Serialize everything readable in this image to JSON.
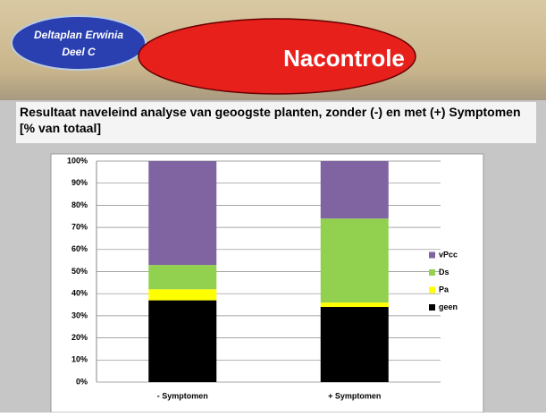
{
  "slide": {
    "badge": [
      "Deltaplan Erwinia",
      "Deel C"
    ],
    "title": "Nacontrole"
  },
  "chart_data": {
    "type": "stacked_bar",
    "title": "Resultaat naveleind analyse van geoogste planten, zonder (-) en met (+) Symptomen [% van totaal]",
    "categories": [
      "- Symptomen",
      "+ Symptomen"
    ],
    "series": [
      {
        "name": "geen",
        "color": "#000000",
        "values": [
          37,
          34
        ]
      },
      {
        "name": "Pa",
        "color": "#ffff00",
        "values": [
          5,
          2
        ]
      },
      {
        "name": "Ds",
        "color": "#92d050",
        "values": [
          11,
          38
        ]
      },
      {
        "name": "vPcc",
        "color": "#8064a2",
        "values": [
          47,
          26
        ]
      }
    ],
    "ylim": [
      0,
      100
    ],
    "yticks": [
      {
        "value": 0,
        "label": "0%"
      },
      {
        "value": 10,
        "label": "10%"
      },
      {
        "value": 20,
        "label": "20%"
      },
      {
        "value": 30,
        "label": "30%"
      },
      {
        "value": 40,
        "label": "40%"
      },
      {
        "value": 50,
        "label": "50%"
      },
      {
        "value": 60,
        "label": "60%"
      },
      {
        "value": 70,
        "label": "70%"
      },
      {
        "value": 80,
        "label": "80%"
      },
      {
        "value": 90,
        "label": "90%"
      },
      {
        "value": 100,
        "label": "100%"
      }
    ],
    "grid": true,
    "legend": "right"
  }
}
